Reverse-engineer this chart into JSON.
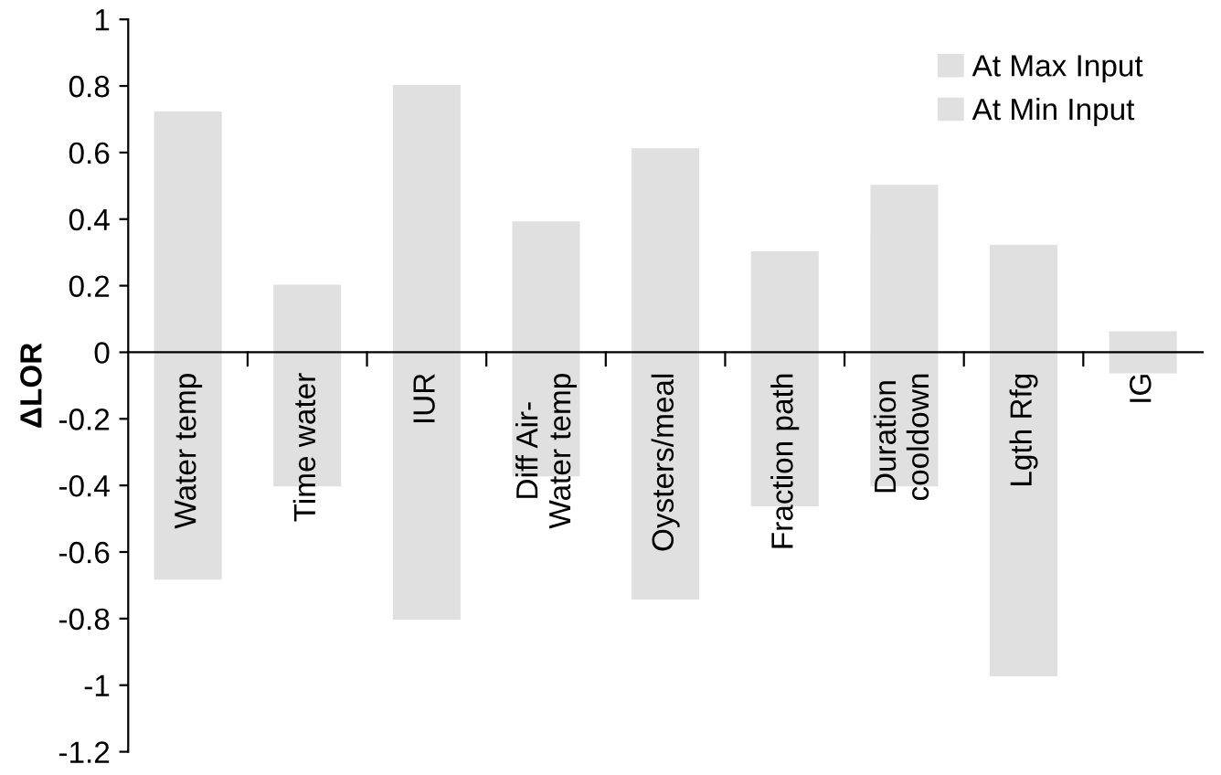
{
  "chart_data": {
    "type": "bar",
    "ylabel": "ΔLOR",
    "categories": [
      "Water temp",
      "Time water",
      "IUR",
      "Diff Air-\nWater temp",
      "Oysters/meal",
      "Fraction path",
      "Duration\ncooldown",
      "Lgth Rfg",
      "IG"
    ],
    "series": [
      {
        "name": "At Max Input",
        "color": "#e0e0e0",
        "values": [
          0.72,
          0.2,
          0.8,
          0.39,
          0.61,
          0.3,
          0.5,
          0.32,
          0.06
        ]
      },
      {
        "name": "At Min Input",
        "color": "#e0e0e0",
        "values": [
          -0.68,
          -0.4,
          -0.8,
          -0.37,
          -0.74,
          -0.46,
          -0.4,
          -0.97,
          -0.06
        ]
      }
    ],
    "ylim": [
      -1.2,
      1
    ],
    "yticks": [
      1,
      0.8,
      0.6,
      0.4,
      0.2,
      0,
      -0.2,
      -0.4,
      -0.6,
      -0.8,
      -1,
      -1.2
    ],
    "stacked": true,
    "grid": false,
    "legend": "top right"
  }
}
